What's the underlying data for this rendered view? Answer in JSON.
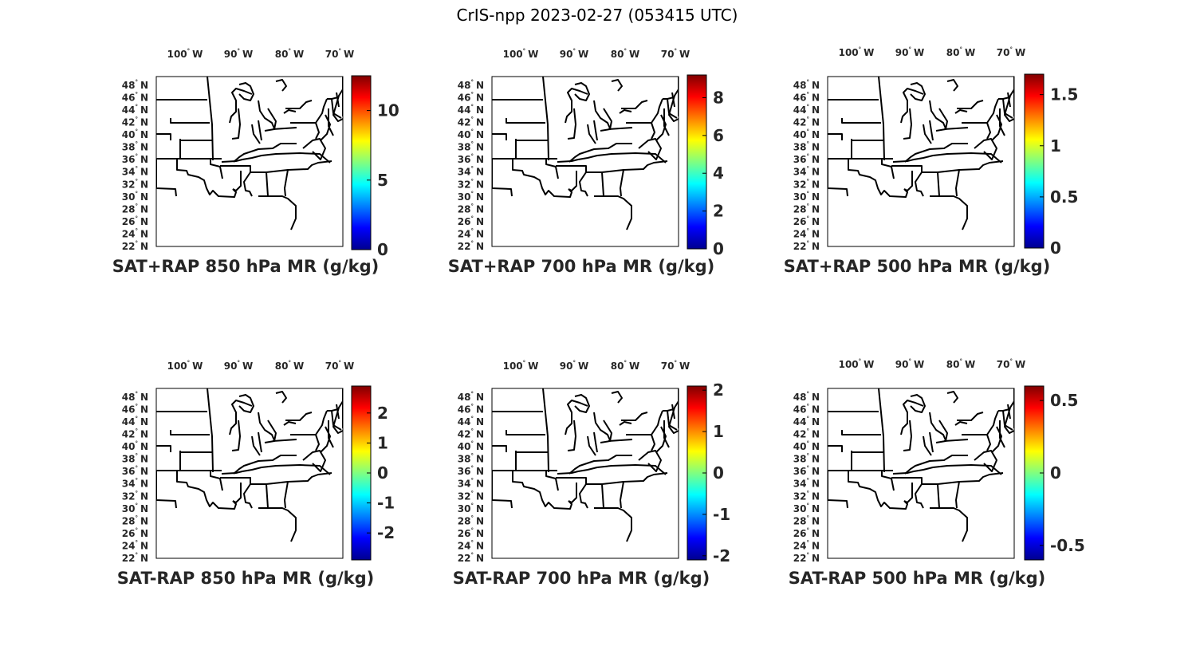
{
  "figure": {
    "title": "CrIS-npp 2023-02-27 (053415 UTC)"
  },
  "colormap": [
    "#00008f",
    "#0000ff",
    "#0080ff",
    "#00ffff",
    "#80ff80",
    "#ffff00",
    "#ff8000",
    "#ff0000",
    "#800000"
  ],
  "lon_ticks": [
    {
      "deg": "100",
      "hemi": "W"
    },
    {
      "deg": "90",
      "hemi": "W"
    },
    {
      "deg": "80",
      "hemi": "W"
    },
    {
      "deg": "70",
      "hemi": "W"
    }
  ],
  "lat_ticks": [
    {
      "deg": "48",
      "hemi": "N"
    },
    {
      "deg": "46",
      "hemi": "N"
    },
    {
      "deg": "44",
      "hemi": "N"
    },
    {
      "deg": "42",
      "hemi": "N"
    },
    {
      "deg": "40",
      "hemi": "N"
    },
    {
      "deg": "38",
      "hemi": "N"
    },
    {
      "deg": "36",
      "hemi": "N"
    },
    {
      "deg": "34",
      "hemi": "N"
    },
    {
      "deg": "32",
      "hemi": "N"
    },
    {
      "deg": "30",
      "hemi": "N"
    },
    {
      "deg": "28",
      "hemi": "N"
    },
    {
      "deg": "26",
      "hemi": "N"
    },
    {
      "deg": "24",
      "hemi": "N"
    },
    {
      "deg": "22",
      "hemi": "N"
    }
  ],
  "lat_range": [
    22,
    49.4
  ],
  "panels": [
    {
      "title": "SAT+RAP 850 hPa MR (g/kg)",
      "colorbar": {
        "min": 0,
        "max": 12.5,
        "ticks": [
          "0",
          "5",
          "10"
        ],
        "tick_values": [
          0,
          5,
          10
        ]
      }
    },
    {
      "title": "SAT+RAP 700 hPa MR (g/kg)",
      "colorbar": {
        "min": 0,
        "max": 9.2,
        "ticks": [
          "0",
          "2",
          "4",
          "6",
          "8"
        ],
        "tick_values": [
          0,
          2,
          4,
          6,
          8
        ]
      }
    },
    {
      "title": "SAT+RAP 500 hPa MR (g/kg)",
      "colorbar": {
        "min": 0,
        "max": 1.7,
        "ticks": [
          "0",
          "0.5",
          "1",
          "1.5"
        ],
        "tick_values": [
          0,
          0.5,
          1,
          1.5
        ]
      }
    },
    {
      "title": "SAT-RAP 850 hPa MR (g/kg)",
      "colorbar": {
        "min": -2.9,
        "max": 2.9,
        "ticks": [
          "-2",
          "-1",
          "0",
          "1",
          "2"
        ],
        "tick_values": [
          -2,
          -1,
          0,
          1,
          2
        ]
      }
    },
    {
      "title": "SAT-RAP 700 hPa MR (g/kg)",
      "colorbar": {
        "min": -2.1,
        "max": 2.1,
        "ticks": [
          "-2",
          "-1",
          "0",
          "1",
          "2"
        ],
        "tick_values": [
          -2,
          -1,
          0,
          1,
          2
        ]
      }
    },
    {
      "title": "SAT-RAP 500 hPa MR (g/kg)",
      "colorbar": {
        "min": -0.6,
        "max": 0.6,
        "ticks": [
          "-0.5",
          "0",
          "0.5"
        ],
        "tick_values": [
          -0.5,
          0,
          0.5
        ]
      }
    }
  ]
}
